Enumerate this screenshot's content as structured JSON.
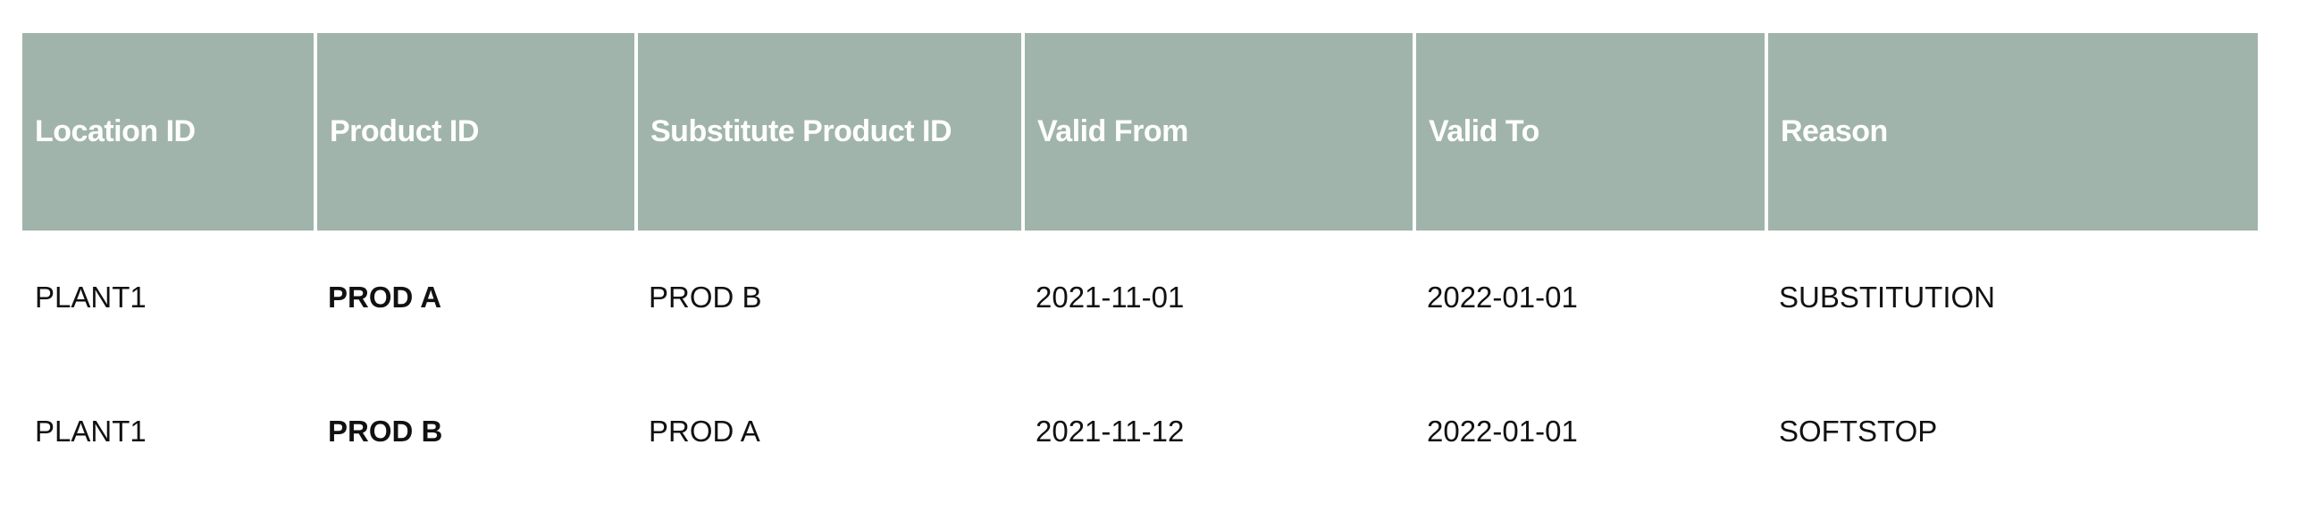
{
  "table": {
    "headers": [
      "Location ID",
      "Product ID",
      "Substitute Product ID",
      "Valid From",
      "Valid To",
      "Reason"
    ],
    "rows": [
      [
        "PLANT1",
        "PROD A",
        "PROD B",
        "2021-11-01",
        "2022-01-01",
        "SUBSTITUTION"
      ],
      [
        "PLANT1",
        "PROD B",
        "PROD A",
        "2021-11-12",
        "2022-01-01",
        "SOFTSTOP"
      ]
    ],
    "header_color": "#a0b4ab"
  }
}
